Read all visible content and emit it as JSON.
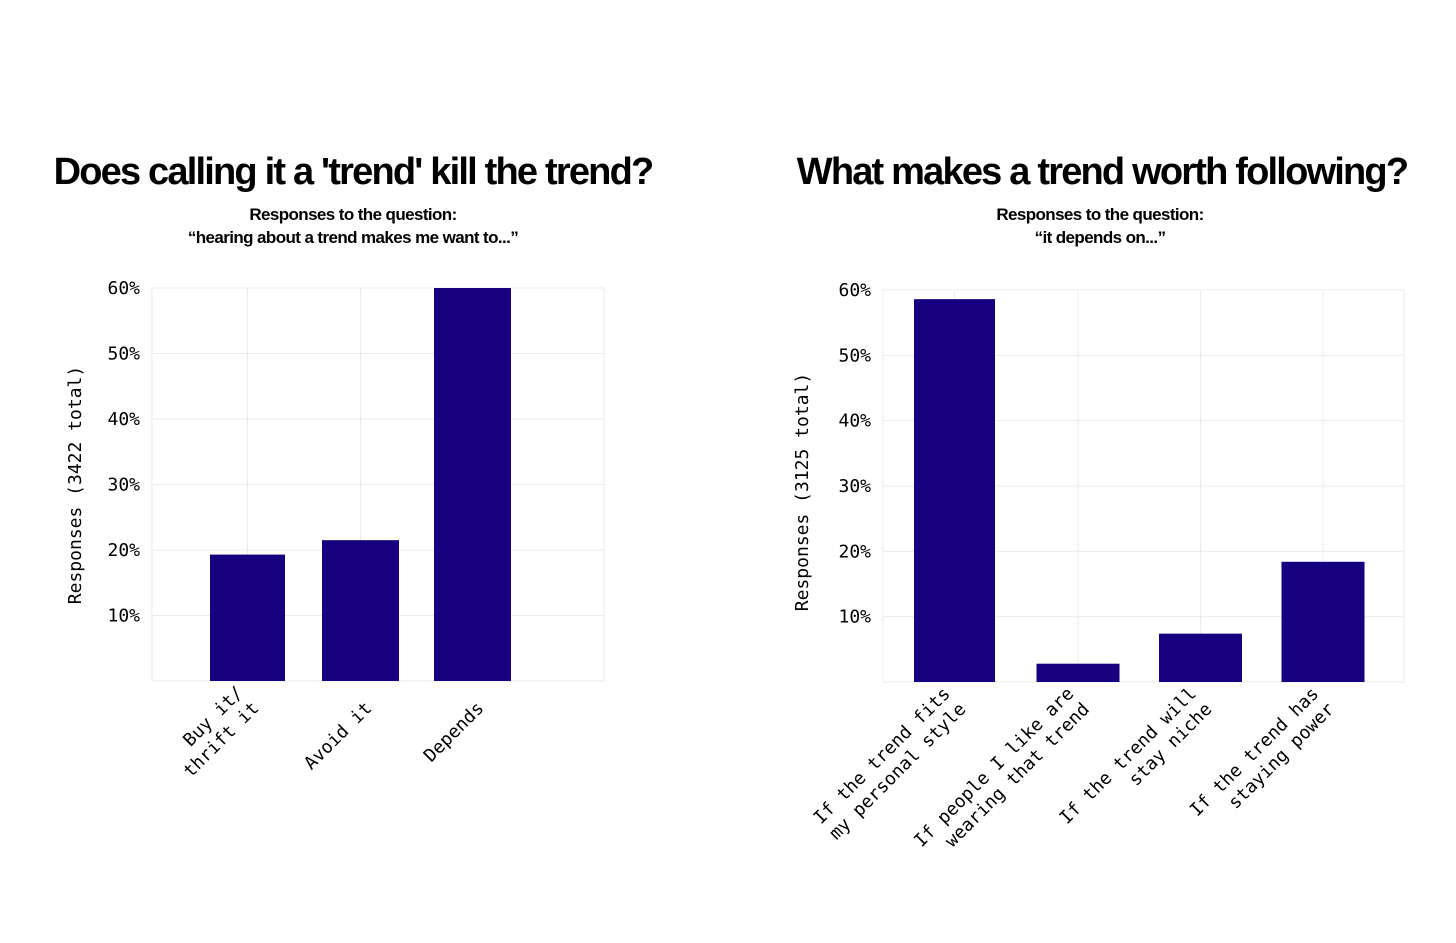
{
  "chart_data": [
    {
      "type": "bar",
      "title": "Does calling it a 'trend' kill the trend?",
      "subtitle": [
        "Responses to the question:",
        "“hearing about a trend makes me want to...”"
      ],
      "ylabel": "Responses (3422 total)",
      "xlabel": "",
      "categories": [
        [
          "Buy it/",
          "thrift it"
        ],
        [
          "Avoid it"
        ],
        [
          "Depends"
        ]
      ],
      "values": [
        19.3,
        21.5,
        60
      ],
      "ylim": [
        0,
        60
      ],
      "yticks": [
        10,
        20,
        30,
        40,
        50,
        60
      ],
      "ytick_labels": [
        "10%",
        "20%",
        "30%",
        "40%",
        "50%",
        "60%"
      ],
      "bar_color": "#16007f",
      "grid": true,
      "legend": "none"
    },
    {
      "type": "bar",
      "title": "What makes a trend worth following?",
      "subtitle": [
        "Responses to the question:",
        "“it depends on...”"
      ],
      "ylabel": "Responses (3125 total)",
      "xlabel": "",
      "categories": [
        [
          "If the trend fits",
          "my personal style"
        ],
        [
          "If people I like are",
          "wearing that trend"
        ],
        [
          "If the trend will",
          "stay niche"
        ],
        [
          "If the trend has",
          "staying power"
        ]
      ],
      "values": [
        58.6,
        2.8,
        7.4,
        18.4
      ],
      "ylim": [
        0,
        60
      ],
      "yticks": [
        10,
        20,
        30,
        40,
        50,
        60
      ],
      "ytick_labels": [
        "10%",
        "20%",
        "30%",
        "40%",
        "50%",
        "60%"
      ],
      "bar_color": "#16007f",
      "grid": true,
      "legend": "none"
    }
  ]
}
